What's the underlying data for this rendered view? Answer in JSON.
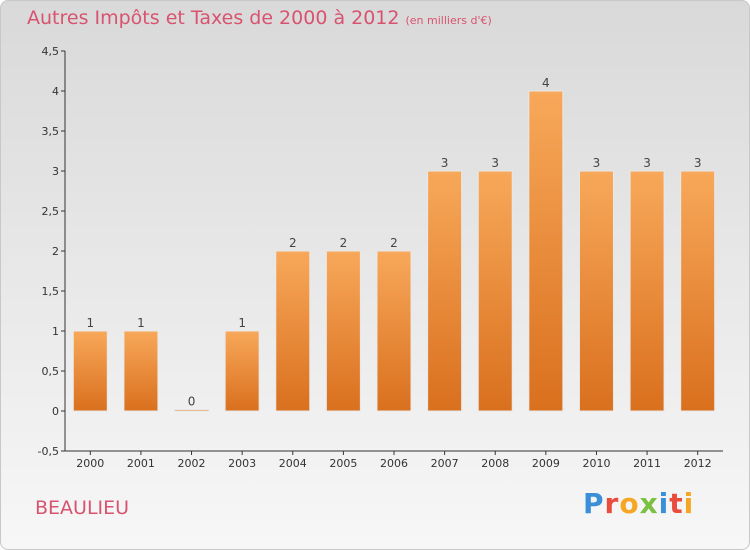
{
  "header": {
    "title": "Autres Impôts et Taxes de 2000 à 2012",
    "subtitle": "(en milliers d'€)"
  },
  "footer": {
    "location": "BEAULIEU",
    "logo_letters": [
      "P",
      "r",
      "o",
      "x",
      "i",
      "t",
      "i"
    ],
    "logo_colors": [
      "#3a8fd8",
      "#e94b3c",
      "#f5a623",
      "#7bc043",
      "#3a8fd8",
      "#e94b3c",
      "#f5a623"
    ]
  },
  "colors": {
    "bar_top": "#f8a85a",
    "bar_bottom": "#d9701e",
    "title": "#d8536f",
    "axis": "#333333"
  },
  "chart_data": {
    "type": "bar",
    "title": "Autres Impôts et Taxes de 2000 à 2012",
    "subtitle": "(en milliers d'€)",
    "categories": [
      "2000",
      "2001",
      "2002",
      "2003",
      "2004",
      "2005",
      "2006",
      "2007",
      "2008",
      "2009",
      "2010",
      "2011",
      "2012"
    ],
    "values": [
      1,
      1,
      0,
      1,
      2,
      2,
      2,
      3,
      3,
      4,
      3,
      3,
      3
    ],
    "data_labels": [
      "1",
      "1",
      "0",
      "1",
      "2",
      "2",
      "2",
      "3",
      "3",
      "4",
      "3",
      "3",
      "3"
    ],
    "ylim": [
      -0.5,
      4.5
    ],
    "yticks": [
      -0.5,
      0,
      0.5,
      1,
      1.5,
      2,
      2.5,
      3,
      3.5,
      4,
      4.5
    ],
    "ytick_labels": [
      "-0,5",
      "0",
      "0,5",
      "1",
      "1,5",
      "2",
      "2,5",
      "3",
      "3,5",
      "4",
      "4,5"
    ],
    "xlabel": "",
    "ylabel": "",
    "grid": false,
    "legend": "none"
  }
}
